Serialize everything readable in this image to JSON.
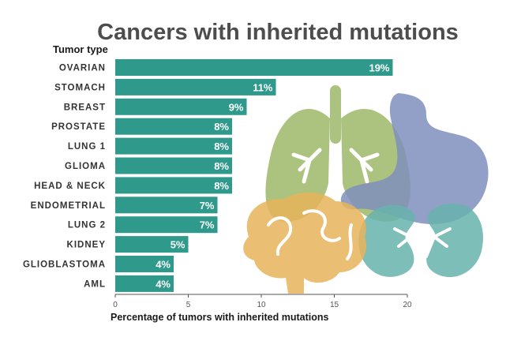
{
  "chart_data": {
    "type": "bar",
    "orientation": "horizontal",
    "title": "Cancers with inherited mutations",
    "ylabel": "Tumor type",
    "xlabel": "Percentage of tumors with inherited mutations",
    "categories": [
      "OVARIAN",
      "STOMACH",
      "BREAST",
      "PROSTATE",
      "LUNG 1",
      "GLIOMA",
      "HEAD & NECK",
      "ENDOMETRIAL",
      "LUNG 2",
      "KIDNEY",
      "GLIOBLASTOMA",
      "AML"
    ],
    "values": [
      19,
      11,
      9,
      8,
      8,
      8,
      8,
      7,
      7,
      5,
      4,
      4
    ],
    "value_labels": [
      "19%",
      "11%",
      "9%",
      "8%",
      "8%",
      "8%",
      "8%",
      "7%",
      "7%",
      "5%",
      "4%",
      "4%"
    ],
    "xlim": [
      0,
      20
    ],
    "xticks": [
      0,
      5,
      10,
      15,
      20
    ],
    "grid": false,
    "colors": {
      "bar": "#2f9a8b",
      "lungs": "#9db86a",
      "stomach": "#7f8fbd",
      "brain": "#e8b45a",
      "kidneys": "#67b3ad",
      "title": "#4d4d4d"
    },
    "illustrations": [
      "lungs-icon",
      "stomach-icon",
      "brain-icon",
      "kidneys-icon"
    ]
  }
}
